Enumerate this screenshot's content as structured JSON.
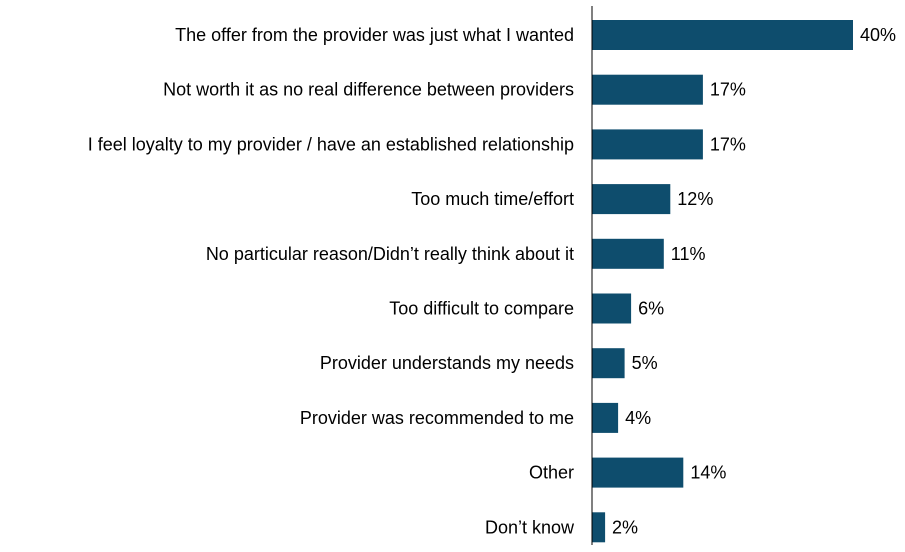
{
  "chart_data": {
    "type": "bar",
    "orientation": "horizontal",
    "categories": [
      "The offer from the provider was just what I wanted",
      "Not worth it as no real difference between providers",
      "I feel loyalty to my provider / have an established relationship",
      "Too much time/effort",
      "No particular reason/Didn’t really think about it",
      "Too difficult to compare",
      "Provider understands my needs",
      "Provider was recommended to me",
      "Other",
      "Don’t know"
    ],
    "values": [
      40,
      17,
      17,
      12,
      11,
      6,
      5,
      4,
      14,
      2
    ],
    "value_labels": [
      "40%",
      "17%",
      "17%",
      "12%",
      "11%",
      "6%",
      "5%",
      "4%",
      "14%",
      "2%"
    ],
    "unit": "%",
    "xlim": [
      0,
      40
    ],
    "grid": false,
    "legend": "none",
    "colors": {
      "bar": "#0e4d6d",
      "axis": "#000000",
      "text": "#000000"
    }
  }
}
